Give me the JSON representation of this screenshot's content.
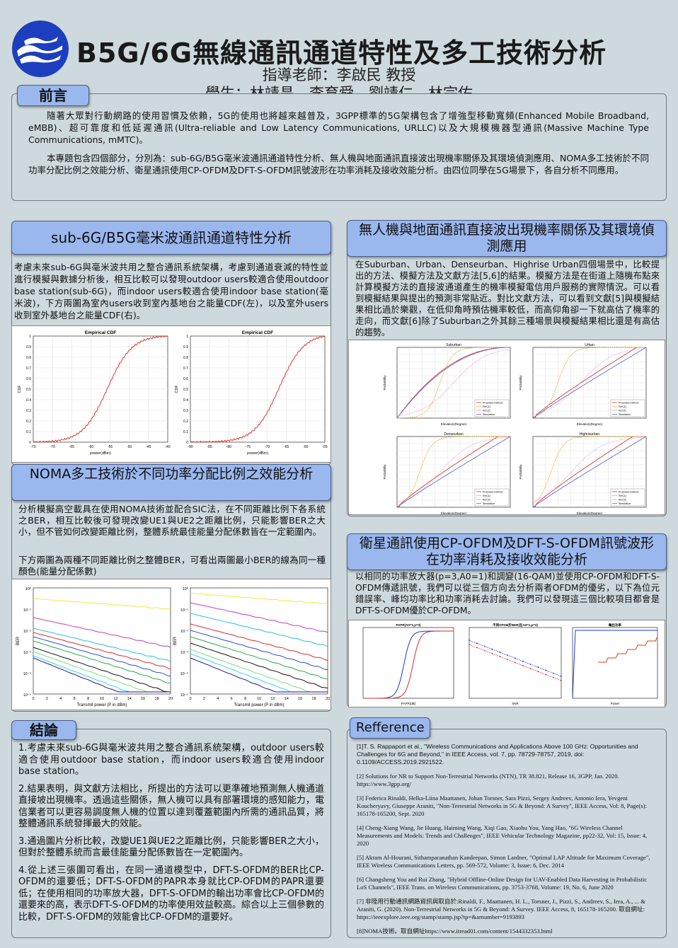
{
  "title": "B5G/6G無線通訊通道特性及多工技術分析",
  "advisor": "指導老師：李啟民 教授",
  "students": "學生：林靖昌、李育舜、劉靖仁、林宗佑",
  "intro": {
    "heading": "前言",
    "p1": "隨著大眾對行動網路的使用習慣及依賴，5G的使用也將越來越普及，3GPP標準的5G架構包含了增強型移動寬頻(Enhanced Mobile Broadband, eMBB)、超可靠度和低延遲通訊(Ultra-reliable and Low Latency Communications, URLLC)以及大規模機器型通訊(Massive Machine Type Communications, mMTC)。",
    "p2": "本專題包含四個部分，分別為：sub-6G/B5G毫米波通訊通道特性分析、無人機與地面通訊直接波出現機率關係及其環境偵測應用、NOMA多工技術於不同功率分配比例之效能分析、衛星通訊使用CP-OFDM及DFT-S-OFDM訊號波形在功率消耗及接收效能分析。由四位同學在5G場景下，各自分析不同應用。"
  },
  "sec1": {
    "heading": "sub-6G/B5G毫米波通訊通道特性分析",
    "text": "考慮未來sub-6G與毫米波共用之整合通訊系統架構，考慮到通道衰減的特性並進行模擬與數據分析後，相互比較可以發現outdoor users較適合使用outdoor base station(sub-6G)，而indoor users較適合使用indoor base station(毫米波)，下方兩圖為室內users收到室內基地台之能量CDF(左)，以及室外users收到室外基地台之能量CDF(右)。",
    "chart_title_l": "Empirical CDF",
    "chart_title_r": "Empirical CDF",
    "xlabel": "power(dBm)",
    "ylabel": "CDF",
    "xticks_l": [
      "-75",
      "-70",
      "-65",
      "-60",
      "-55",
      "-50",
      "-45",
      "-40"
    ],
    "xticks_r": [
      "-90",
      "-85",
      "-80",
      "-75",
      "-70",
      "-65",
      "-60",
      "-55"
    ],
    "yticks": [
      "0",
      "0.1",
      "0.2",
      "0.3",
      "0.4",
      "0.5",
      "0.6",
      "0.7",
      "0.8",
      "0.9",
      "1"
    ]
  },
  "sec2": {
    "heading": "無人機與地面通訊直接波出現機率關係及其環境偵測應用",
    "text": "在Suburban、Urban、Denseurban、Highrise Urban四個場景中，比較提出的方法、模擬方法及文獻方法[5,6]的結果。模擬方法是在街道上隨機布點來計算模擬方法的直接波通道產生的機率模擬電信用戶服務的實際情況。可以看到模擬結果與提出的預測非常貼近。對比文獻方法，可以看到文獻[5]與模擬結果相比過於樂觀，在低仰角時預估機率較低，而高仰角卻一下就高估了機率的走向，而文獻[6]除了Suburban之外其餘三種場景與模擬結果相比還是有高估的趨勢。",
    "plots": [
      "Suburban",
      "Urban",
      "Denseurban",
      "Highrisurban"
    ],
    "legend": [
      "Proposed method",
      "Ref [1]",
      "Ref [2]",
      "Simulation"
    ],
    "xlabel": "Elevation(Degree)",
    "ylabel": "Probability"
  },
  "sec3": {
    "heading": "NOMA多工技術於不同功率分配比例之效能分析",
    "text1": "分析模擬高空載具在使用NOMA技術並配合SIC法，在不同距離比例下各系統之BER，相互比較後可發現改變UE1與UE2之距離比例，只能影響BER之大小，但不管如何改變距離比例，整體系統最佳能量分配係數皆在一定範圍內。",
    "text2": "下方兩圖為兩種不同距離比例之整體BER，可看出兩圖最小BER的線為同一種顏色(能量分配係數)",
    "xlabel": "Transmit power (P in dBm)",
    "ylabel": "BER",
    "xticks": [
      "0",
      "2",
      "4",
      "6",
      "8",
      "10",
      "12",
      "14",
      "16",
      "18",
      "20"
    ],
    "yticks": [
      "10⁰",
      "10⁻¹",
      "10⁻²",
      "10⁻³",
      "10⁻⁴",
      "10⁻⁵"
    ]
  },
  "sec4": {
    "heading": "衛星通訊使用CP-OFDM及DFT-S-OFDM訊號波形在功率消耗及接收效能分析",
    "text": "以相同的功率放大器(p=3,A0=1)和調變(16-QAM)並使用CP-OFDM和DFT-S-OFDM傳遞訊號，我們可以從三個方向去分析兩者OFDM的優劣，以下為位元錯誤率、峰均功率比和功率消耗去討論。我們可以發現這三個比較項目都會是DFT-S-OFDM優於CP-OFDM。",
    "t1": "PAPR(A0=1,p=3)",
    "t2": "不同OFDM於BER(在A0=1,p=3)",
    "t3": "輸出功率",
    "x1": "PAPR(dB)",
    "x2": "SNR",
    "x3": "Power"
  },
  "conclusion": {
    "heading": "結論",
    "items": [
      "1.考慮未來sub-6G與毫米波共用之整合通訊系統架構，outdoor users較適合使用outdoor base station，而indoor users較適合使用indoor base station。",
      "2.結果表明，與文獻方法相比，所提出的方法可以更準確地預測無人機通道直接坡出現機率。透過這些關係，無人機可以具有部署環境的感知能力，電信業者可以更容易調度無人機的位置以達到覆蓋範圍內所需的通訊品質，將整體通訊系統發揮最大的效能。",
      "3.通過圖片分析比較，改變UE1與UE2之距離比例，只能影響BER之大小，但對於整體系統而言最佳能量分配係數皆在一定範圍內。",
      "4.從上述三張圖可看出，在同一通道模型中，DFT-S-OFDM的BER比CP-OFDM的還要低；DFT-S-OFDM的PAPR本身就比CP-OFDM的PAPR還要低；在使用相同的功率放大器，DFT-S-OFDM的輸出功率會比CP-OFDM的還要來的高，表示DFT-S-OFDM的功率使用效益較高。綜合以上三個參數的比較，DFT-S-OFDM的效能會比CP-OFDM的還要好。"
    ]
  },
  "references": {
    "heading": "Refference",
    "items": [
      "[1]T. S. Rappaport et al., \"Wireless Communications and Applications Above 100 GHz: Opportunities and Challenges for 6G and Beyond,\" in IEEE Access, vol. 7, pp. 78729-78757, 2019, doi: 0.1109/ACCESS.2019.2921522.",
      "[2] Solutions for NR to Support Non-Terrestrial Networks (NTN), TR 38.821, Release 16, 3GPP, Jan. 2020. https://www.3gpp.org/",
      "[3] Federica Rinaldi, Helka-Liina Maattanen, Johan Torsner, Sara Pizzi, Sergey Andreev, Antonio Iera, Yevgeni Koucheryavy, Giuseppe Araniti, \"Non-Terrestrial Networks in 5G & Beyond: A Survey\", IEEE Access, Vol: 8, Page(s): 165178-165200, Sept. 2020",
      "[4] Cheng-Xiang Wang, Jie Huang, Haiming Wang, Xiqi Gao, Xiaohu You, Yang Hao, \"6G Wireless Channel Measurements and Models: Trends and Challenges\", IEEE Vehicular Technology Magazine, pp22-32, Vol: 15, Issue: 4, 2020",
      "[5] Akram Al-Hourani, Sithamparanathan Kandeepan, Simon Lardner, \"Optimal LAP Altitude for Maximum Coverage\", IEEE Wireless Communications Letters, pp. 569-572, Volume: 3, Issue: 6, Dec. 2014",
      "[6] Changsheng You and Rui Zhang, \"Hybrid Offline-Online Design for UAV-Enabled Data Harvesting in Probabilistic LoS Channels\", IEEE Trans. on Wireless Communications, pp. 3753-3768, Volume: 19, No. 6, June 2020",
      "[7] 非陸用行動通訊網路資訊與取自於:Rinaldi, F., Maattanen, H. L., Torsner, J., Pizzi, S., Andreev, S., Iera, A., ... & Araniti, G. (2020). Non-Terrestrial Networks in 5G & Beyond: A Survey. IEEE Access, 8, 165178-165200. 取自網址: https://ieeexplore.ieee.org/stamp/stamp.jsp?tp=&arnumber=9193893",
      "[8]NOMA技術。取自網址https://www.itread01.com/content/1544332353.html"
    ]
  }
}
